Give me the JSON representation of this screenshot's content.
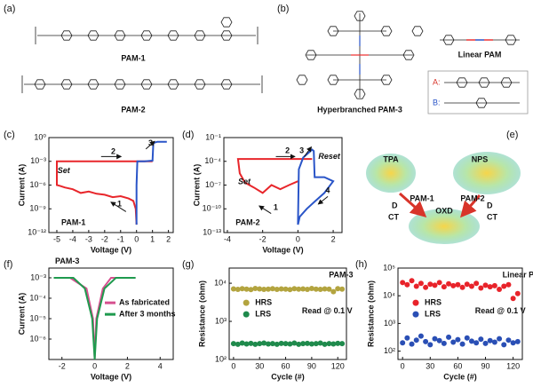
{
  "panel_labels": [
    "(a)",
    "(b)",
    "(c)",
    "(d)",
    "(e)",
    "(f)",
    "(g)",
    "(h)"
  ],
  "structures": {
    "a": [
      "PAM-1",
      "PAM-2"
    ],
    "b": [
      "Hyperbranched PAM-3",
      "Linear PAM",
      "A:",
      "B:"
    ]
  },
  "diagram_e": {
    "nodes": [
      "TPA",
      "NPS",
      "OXD"
    ],
    "links": [
      "PAM-1",
      "PAM-2"
    ],
    "marks": [
      "D",
      "CT",
      "D",
      "CT"
    ]
  },
  "chart_data": [
    {
      "type": "line",
      "xlabel": "Voltage (V)",
      "ylabel": "Current (A)",
      "log_y": true,
      "xlim": [
        -5.5,
        2.3
      ],
      "xticks": [
        -5,
        -4,
        -3,
        -2,
        -1,
        0,
        1,
        2
      ],
      "ylim": [
        1e-12,
        1
      ],
      "yticks": [
        {
          "value": 1,
          "label": "10⁰"
        },
        {
          "value": 0.001,
          "label": "10⁻³"
        },
        {
          "value": 1e-06,
          "label": "10⁻⁶"
        },
        {
          "value": 1e-09,
          "label": "10⁻⁹"
        },
        {
          "value": 1e-12,
          "label": "10⁻¹²"
        }
      ],
      "series": [
        {
          "color": "#e8262b",
          "x": [
            0,
            -0.05,
            -0.2,
            -0.5,
            -1,
            -1.5,
            -2,
            -2.5,
            -3,
            -3.5,
            -4,
            -4.5,
            -4.8,
            -5,
            -5,
            -4,
            -2,
            0,
            1
          ],
          "values": [
            1e-11,
            1e-09,
            1e-08,
            2e-08,
            4e-08,
            3e-08,
            6e-08,
            8e-08,
            1.5e-07,
            1e-07,
            3e-07,
            5e-07,
            8e-07,
            1e-06,
            0.001,
            0.001,
            0.001,
            0.001,
            0.001
          ]
        },
        {
          "color": "#2a55c8",
          "x": [
            0,
            0,
            0.05,
            0.5,
            1,
            1.05,
            1.3,
            1.9
          ],
          "values": [
            1e-11,
            1e-06,
            0.001,
            0.001,
            0.0012,
            0.2,
            0.3,
            0.3
          ]
        }
      ],
      "annotations": [
        "Set",
        "1",
        "2",
        "3",
        "PAM-1"
      ]
    },
    {
      "type": "line",
      "xlabel": "Voltage (V)",
      "ylabel": "Current (A)",
      "log_y": true,
      "xlim": [
        -4.2,
        2.5
      ],
      "xticks": [
        -4,
        -2,
        0,
        2
      ],
      "ylim": [
        1e-13,
        0.1
      ],
      "yticks": [
        {
          "value": 0.1,
          "label": "10⁻¹"
        },
        {
          "value": 0.0001,
          "label": "10⁻⁴"
        },
        {
          "value": 1e-07,
          "label": "10⁻⁷"
        },
        {
          "value": 1e-10,
          "label": "10⁻¹⁰"
        },
        {
          "value": 1e-13,
          "label": "10⁻¹³"
        }
      ],
      "series": [
        {
          "color": "#e8262b",
          "x": [
            0,
            -0.5,
            -1,
            -1.5,
            -2,
            -2.5,
            -3,
            -3.3,
            -3.4,
            -2,
            0,
            0.5,
            0.8
          ],
          "values": [
            3e-07,
            1e-07,
            3e-08,
            1e-07,
            1e-08,
            5e-08,
            2e-07,
            3e-06,
            0.0002,
            0.0002,
            0.0002,
            0.0002,
            0.0002
          ]
        },
        {
          "color": "#2a55c8",
          "x": [
            0,
            0.05,
            0.3,
            0.8,
            0.9,
            0.95,
            1.5,
            2,
            1.5,
            1,
            0.5,
            0.1,
            0
          ],
          "values": [
            1e-12,
            1e-05,
            0.0003,
            0.003,
            0.002,
            1e-06,
            1e-06,
            3e-07,
            1e-08,
            1e-09,
            1e-10,
            1e-11,
            1e-12
          ]
        }
      ],
      "annotations": [
        "Set",
        "Reset",
        "1",
        "2",
        "3",
        "4",
        "PAM-2"
      ]
    },
    {
      "type": "line",
      "xlabel": "Voltage (V)",
      "ylabel": "Current (A)",
      "log_y": true,
      "xlim": [
        -2.8,
        4.8
      ],
      "xticks": [
        -2,
        0,
        2,
        4
      ],
      "ylim": [
        1e-07,
        0.003
      ],
      "yticks": [
        {
          "value": 0.001,
          "label": "10⁻³"
        },
        {
          "value": 0.0001,
          "label": "10⁻⁴"
        },
        {
          "value": 1e-05,
          "label": "10⁻⁵"
        },
        {
          "value": 1e-06,
          "label": "10⁻⁶"
        }
      ],
      "legend": "center right",
      "series": [
        {
          "name": "As fabricated",
          "color": "#d6508f",
          "x": [
            -2.5,
            -1.5,
            -0.5,
            -0.1,
            0,
            0.1,
            0.5,
            1,
            2.5
          ],
          "values": [
            0.001,
            0.001,
            0.0003,
            1e-05,
            1e-07,
            1e-05,
            0.0003,
            0.001,
            0.001
          ]
        },
        {
          "name": "After 3 months",
          "color": "#1f9a4e",
          "x": [
            -2.5,
            -1.3,
            -0.6,
            -0.15,
            0,
            0.15,
            0.6,
            1.3,
            2.5
          ],
          "values": [
            0.001,
            0.001,
            0.0003,
            1e-05,
            1e-07,
            1e-05,
            0.0003,
            0.001,
            0.001
          ]
        }
      ],
      "annotations": [
        "PAM-3"
      ]
    },
    {
      "type": "scatter",
      "xlabel": "Cycle (#)",
      "ylabel": "Resistance (ohm)",
      "log_y": true,
      "xlim": [
        -5,
        130
      ],
      "xticks": [
        0,
        30,
        60,
        90,
        120
      ],
      "ylim": [
        100,
        25000
      ],
      "yticks": [
        {
          "value": 100,
          "label": "10²"
        },
        {
          "value": 1000,
          "label": "10³"
        },
        {
          "value": 10000,
          "label": "10⁴"
        }
      ],
      "legend": "center left",
      "x": [
        0,
        5,
        10,
        15,
        20,
        25,
        30,
        35,
        40,
        45,
        50,
        55,
        60,
        65,
        70,
        75,
        80,
        85,
        90,
        95,
        100,
        105,
        110,
        115,
        120,
        125
      ],
      "series": [
        {
          "name": "HRS",
          "color": "#b3a43f",
          "values": [
            7100,
            6900,
            7200,
            7000,
            6800,
            7300,
            7100,
            6900,
            7000,
            7200,
            6900,
            7100,
            7000,
            6800,
            7200,
            7000,
            7100,
            6900,
            7300,
            7000,
            6900,
            7100,
            7000,
            6000,
            7200,
            7000
          ]
        },
        {
          "name": "LRS",
          "color": "#1f8a4c",
          "values": [
            260,
            250,
            270,
            255,
            265,
            250,
            260,
            270,
            255,
            260,
            250,
            265,
            260,
            255,
            270,
            250,
            260,
            265,
            255,
            260,
            270,
            250,
            260,
            255,
            265,
            260
          ]
        }
      ],
      "annotations": [
        "PAM-3",
        "Read @ 0.1 V"
      ]
    },
    {
      "type": "scatter",
      "xlabel": "Cycle (#)",
      "ylabel": "Resistance (ohm)",
      "log_y": true,
      "xlim": [
        -5,
        130
      ],
      "xticks": [
        0,
        30,
        60,
        90,
        120
      ],
      "ylim": [
        50,
        100000
      ],
      "yticks": [
        {
          "value": 100,
          "label": "10²"
        },
        {
          "value": 1000,
          "label": "10³"
        },
        {
          "value": 10000,
          "label": "10⁴"
        },
        {
          "value": 100000,
          "label": "10⁵"
        }
      ],
      "legend": "center left",
      "x": [
        0,
        5,
        10,
        15,
        20,
        25,
        30,
        35,
        40,
        45,
        50,
        55,
        60,
        65,
        70,
        75,
        80,
        85,
        90,
        95,
        100,
        105,
        110,
        115,
        120,
        125
      ],
      "series": [
        {
          "name": "HRS",
          "color": "#e8232a",
          "values": [
            30000,
            25000,
            35000,
            22000,
            28000,
            20000,
            26000,
            24000,
            30000,
            21000,
            27000,
            23000,
            25000,
            20000,
            26000,
            22000,
            28000,
            19000,
            24000,
            21000,
            23000,
            17000,
            22000,
            25000,
            8000,
            12000
          ]
        },
        {
          "name": "LRS",
          "color": "#2a4fb5",
          "values": [
            200,
            300,
            180,
            250,
            350,
            220,
            170,
            280,
            240,
            190,
            320,
            210,
            260,
            180,
            300,
            230,
            200,
            270,
            190,
            240,
            210,
            280,
            170,
            250,
            200,
            220
          ]
        }
      ],
      "annotations": [
        "Linear PAM",
        "Read @ 0.1 V"
      ]
    }
  ]
}
